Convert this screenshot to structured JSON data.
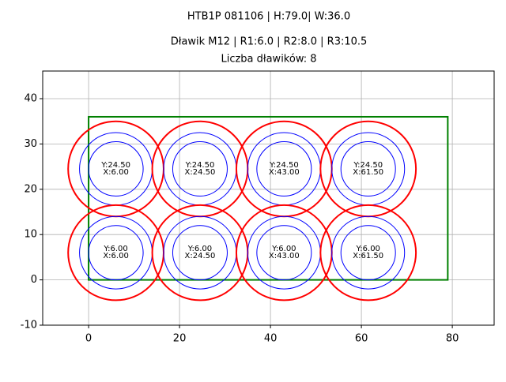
{
  "chart_data": {
    "type": "circles",
    "title": [
      "HTB1P 081106 | H:79.0| W:36.0",
      "Dławik M12 | R1:6.0 | R2:8.0 | R3:10.5",
      "Liczba dławików: 8"
    ],
    "x": [
      6.0,
      24.5,
      43.0,
      61.5,
      6.0,
      24.5,
      43.0,
      61.5
    ],
    "y": [
      24.5,
      24.5,
      24.5,
      24.5,
      6.0,
      6.0,
      6.0,
      6.0
    ],
    "x_labels": [
      "X:6.00",
      "X:24.50",
      "X:43.00",
      "X:61.50",
      "X:6.00",
      "X:24.50",
      "X:43.00",
      "X:61.50"
    ],
    "y_labels": [
      "Y:24.50",
      "Y:24.50",
      "Y:24.50",
      "Y:24.50",
      "Y:6.00",
      "Y:6.00",
      "Y:6.00",
      "Y:6.00"
    ],
    "radii": [
      6.0,
      8.0,
      10.5
    ],
    "radius_colors": [
      "#0000ff",
      "#0000ff",
      "#ff0000"
    ],
    "outline": {
      "x": [
        0,
        79.0
      ],
      "y": [
        0,
        36.0
      ],
      "color": "#008000"
    },
    "xlim": [
      -10.1,
      89.2
    ],
    "ylim": [
      -10,
      46.1
    ],
    "xticks": [
      0,
      20,
      40,
      60,
      80
    ],
    "yticks": [
      -10,
      0,
      10,
      20,
      30,
      40
    ],
    "grid": true
  }
}
